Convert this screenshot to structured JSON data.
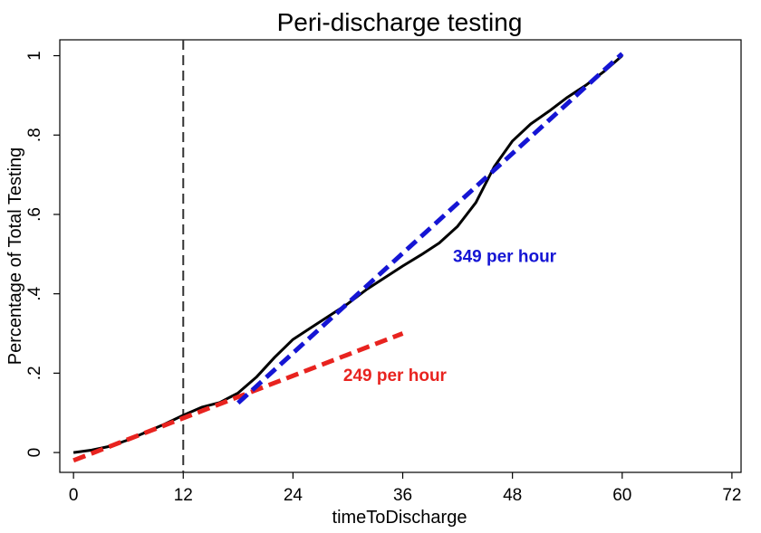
{
  "chart_data": {
    "type": "line",
    "title": "Peri-discharge testing",
    "xlabel": "timeToDischarge",
    "ylabel": "Percentage of Total Testing",
    "xlim": [
      -1.5,
      73
    ],
    "ylim": [
      -0.05,
      1.04
    ],
    "x_ticks": [
      0,
      12,
      24,
      36,
      48,
      60,
      72
    ],
    "x_tick_labels": [
      "0",
      "12",
      "24",
      "36",
      "48",
      "60",
      "72"
    ],
    "y_ticks": [
      0,
      0.2,
      0.4,
      0.6,
      0.8,
      1
    ],
    "y_tick_labels": [
      "0",
      ".2",
      ".4",
      ".6",
      ".8",
      "1"
    ],
    "grid": false,
    "reference_line": {
      "x": 12,
      "style": "dashed",
      "color": "#333333"
    },
    "series": [
      {
        "name": "cumulative testing",
        "color": "#000000",
        "style": "solid",
        "x": [
          0,
          2,
          4,
          6,
          8,
          10,
          12,
          14,
          16,
          18,
          20,
          22,
          24,
          26,
          28,
          30,
          32,
          34,
          36,
          38,
          40,
          42,
          44,
          46,
          48,
          50,
          52,
          54,
          56,
          58,
          60
        ],
        "y": [
          0,
          0.006,
          0.016,
          0.032,
          0.052,
          0.072,
          0.094,
          0.114,
          0.126,
          0.15,
          0.19,
          0.24,
          0.285,
          0.315,
          0.345,
          0.375,
          0.41,
          0.44,
          0.47,
          0.498,
          0.528,
          0.57,
          0.63,
          0.72,
          0.785,
          0.828,
          0.86,
          0.895,
          0.925,
          0.96,
          1.0
        ]
      },
      {
        "name": "249 per hour",
        "color": "#e8231f",
        "style": "dashed",
        "x": [
          0,
          36
        ],
        "y": [
          -0.02,
          0.3
        ]
      },
      {
        "name": "349 per hour",
        "color": "#1515d4",
        "style": "dashed",
        "x": [
          18,
          60
        ],
        "y": [
          0.125,
          1.005
        ]
      }
    ],
    "annotations": [
      {
        "text": "249 per hour",
        "x": 29.5,
        "y": 0.18,
        "color": "#e8231f"
      },
      {
        "text": "349 per hour",
        "x": 41.5,
        "y": 0.48,
        "color": "#1515d4"
      }
    ]
  }
}
